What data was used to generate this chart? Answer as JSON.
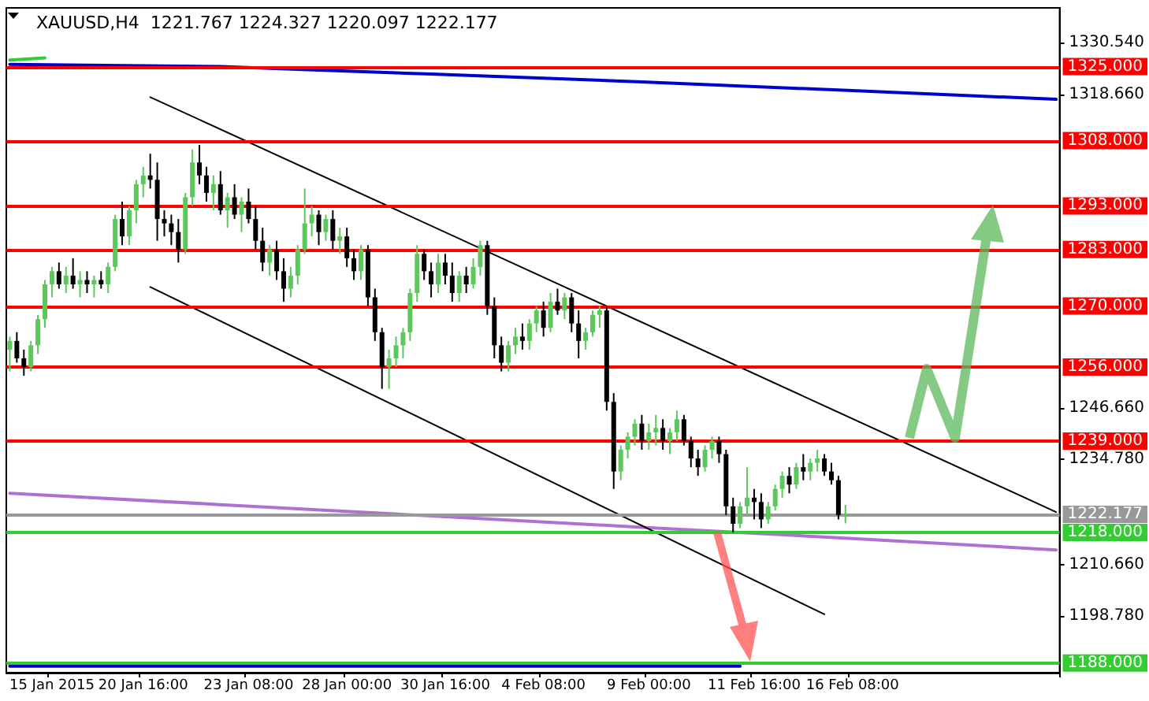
{
  "chart_data": {
    "type": "candlestick",
    "title": "XAUUSD,H4  1221.767 1224.327 1220.097 1222.177",
    "categories": [
      null,
      null,
      null,
      null,
      null,
      null,
      "15 Jan 2015",
      null,
      null,
      null,
      null,
      null,
      null,
      null,
      null,
      null,
      null,
      null,
      null,
      "20 Jan 16:00",
      null,
      null,
      null,
      null,
      null,
      null,
      null,
      null,
      null,
      null,
      null,
      null,
      null,
      null,
      "23 Jan 08:00",
      null,
      null,
      null,
      null,
      null,
      null,
      null,
      null,
      null,
      null,
      null,
      null,
      null,
      "28 Jan 00:00",
      null,
      null,
      null,
      null,
      null,
      null,
      null,
      null,
      null,
      null,
      null,
      null,
      null,
      "30 Jan 16:00",
      null,
      null,
      null,
      null,
      null,
      null,
      null,
      null,
      null,
      null,
      null,
      null,
      null,
      "4 Feb 08:00",
      null,
      null,
      null,
      null,
      null,
      null,
      null,
      null,
      null,
      null,
      null,
      null,
      null,
      null,
      "9 Feb 00:00",
      null,
      null,
      null,
      null,
      null,
      null,
      null,
      null,
      null,
      null,
      null,
      null,
      null,
      null,
      "11 Feb 16:00",
      null,
      null,
      null,
      null,
      null,
      null,
      null,
      null,
      null,
      null,
      null,
      null,
      null,
      "16 Feb 08:00",
      null,
      null,
      null,
      null,
      null,
      null,
      null,
      null,
      null,
      null,
      null,
      null,
      null,
      null,
      null,
      null,
      null,
      null,
      null,
      null,
      null,
      null,
      null,
      null,
      null,
      null,
      null,
      null,
      null
    ],
    "ohlc": [
      [
        1260,
        1263,
        1255,
        1262
      ],
      [
        1262,
        1264,
        1257,
        1258
      ],
      [
        1258,
        1260,
        1254,
        1256
      ],
      [
        1256,
        1262,
        1255,
        1261
      ],
      [
        1261,
        1268,
        1259,
        1267
      ],
      [
        1267,
        1276,
        1265,
        1275
      ],
      [
        1275,
        1279,
        1272,
        1278
      ],
      [
        1278,
        1280,
        1274,
        1275
      ],
      [
        1275,
        1279,
        1273,
        1277
      ],
      [
        1277,
        1281,
        1274,
        1275
      ],
      [
        1275,
        1278,
        1272,
        1276
      ],
      [
        1276,
        1278,
        1273,
        1275
      ],
      [
        1275,
        1277,
        1272,
        1276
      ],
      [
        1276,
        1278,
        1274,
        1275
      ],
      [
        1275,
        1280,
        1273,
        1279
      ],
      [
        1279,
        1291,
        1278,
        1290
      ],
      [
        1290,
        1294,
        1284,
        1286
      ],
      [
        1286,
        1293,
        1284,
        1292
      ],
      [
        1292,
        1299,
        1289,
        1298
      ],
      [
        1298,
        1302,
        1295,
        1300
      ],
      [
        1300,
        1305,
        1297,
        1299
      ],
      [
        1299,
        1303,
        1285,
        1290
      ],
      [
        1290,
        1292,
        1286,
        1289
      ],
      [
        1289,
        1291,
        1284,
        1287
      ],
      [
        1287,
        1290,
        1280,
        1283
      ],
      [
        1283,
        1296,
        1282,
        1295
      ],
      [
        1295,
        1306,
        1293,
        1303
      ],
      [
        1303,
        1307,
        1298,
        1300
      ],
      [
        1300,
        1302,
        1294,
        1296
      ],
      [
        1296,
        1300,
        1292,
        1298
      ],
      [
        1298,
        1301,
        1291,
        1292
      ],
      [
        1292,
        1296,
        1288,
        1295
      ],
      [
        1295,
        1298,
        1290,
        1291
      ],
      [
        1291,
        1295,
        1287,
        1294
      ],
      [
        1294,
        1297,
        1289,
        1290
      ],
      [
        1290,
        1293,
        1283,
        1285
      ],
      [
        1285,
        1288,
        1278,
        1280
      ],
      [
        1280,
        1284,
        1277,
        1283
      ],
      [
        1283,
        1285,
        1276,
        1278
      ],
      [
        1278,
        1281,
        1271,
        1274
      ],
      [
        1274,
        1279,
        1272,
        1277
      ],
      [
        1277,
        1284,
        1275,
        1283
      ],
      [
        1283,
        1297,
        1282,
        1289
      ],
      [
        1289,
        1293,
        1286,
        1291
      ],
      [
        1291,
        1292,
        1284,
        1287
      ],
      [
        1287,
        1291,
        1285,
        1290
      ],
      [
        1290,
        1292,
        1283,
        1285
      ],
      [
        1285,
        1288,
        1282,
        1286
      ],
      [
        1286,
        1288,
        1279,
        1281
      ],
      [
        1281,
        1283,
        1276,
        1278
      ],
      [
        1278,
        1284,
        1276,
        1283
      ],
      [
        1283,
        1284,
        1270,
        1272
      ],
      [
        1272,
        1274,
        1262,
        1264
      ],
      [
        1264,
        1265,
        1251,
        1256
      ],
      [
        1256,
        1260,
        1251,
        1258
      ],
      [
        1258,
        1263,
        1256,
        1261
      ],
      [
        1261,
        1265,
        1258,
        1264
      ],
      [
        1264,
        1274,
        1262,
        1273
      ],
      [
        1273,
        1284,
        1271,
        1282
      ],
      [
        1282,
        1283,
        1276,
        1278
      ],
      [
        1278,
        1280,
        1272,
        1275
      ],
      [
        1275,
        1282,
        1273,
        1280
      ],
      [
        1280,
        1282,
        1275,
        1277
      ],
      [
        1277,
        1280,
        1271,
        1273
      ],
      [
        1273,
        1278,
        1271,
        1277
      ],
      [
        1277,
        1279,
        1273,
        1275
      ],
      [
        1275,
        1281,
        1274,
        1279
      ],
      [
        1279,
        1285,
        1277,
        1284
      ],
      [
        1284,
        1285,
        1268,
        1270
      ],
      [
        1270,
        1272,
        1258,
        1261
      ],
      [
        1261,
        1263,
        1255,
        1257
      ],
      [
        1257,
        1262,
        1255,
        1261
      ],
      [
        1261,
        1265,
        1259,
        1263
      ],
      [
        1263,
        1266,
        1260,
        1262
      ],
      [
        1262,
        1267,
        1260,
        1266
      ],
      [
        1266,
        1270,
        1264,
        1269
      ],
      [
        1269,
        1271,
        1263,
        1265
      ],
      [
        1265,
        1273,
        1264,
        1271
      ],
      [
        1271,
        1274,
        1268,
        1269
      ],
      [
        1269,
        1273,
        1267,
        1272
      ],
      [
        1272,
        1273,
        1264,
        1266
      ],
      [
        1266,
        1269,
        1258,
        1262
      ],
      [
        1262,
        1265,
        1260,
        1264
      ],
      [
        1264,
        1269,
        1263,
        1268
      ],
      [
        1268,
        1270,
        1265,
        1269
      ],
      [
        1269,
        1270,
        1246,
        1248
      ],
      [
        1248,
        1250,
        1228,
        1232
      ],
      [
        1232,
        1238,
        1230,
        1237
      ],
      [
        1237,
        1241,
        1235,
        1240
      ],
      [
        1240,
        1244,
        1238,
        1243
      ],
      [
        1243,
        1245,
        1237,
        1239
      ],
      [
        1239,
        1243,
        1237,
        1241
      ],
      [
        1241,
        1245,
        1238,
        1242
      ],
      [
        1242,
        1244,
        1237,
        1239
      ],
      [
        1239,
        1242,
        1236,
        1241
      ],
      [
        1241,
        1246,
        1239,
        1244
      ],
      [
        1244,
        1245,
        1238,
        1239
      ],
      [
        1239,
        1240,
        1233,
        1235
      ],
      [
        1235,
        1237,
        1231,
        1233
      ],
      [
        1233,
        1238,
        1232,
        1237
      ],
      [
        1237,
        1240,
        1235,
        1239
      ],
      [
        1239,
        1240,
        1234,
        1236
      ],
      [
        1236,
        1237,
        1222,
        1224
      ],
      [
        1224,
        1226,
        1218,
        1220
      ],
      [
        1220,
        1225,
        1219,
        1224
      ],
      [
        1224,
        1233,
        1222,
        1226
      ],
      [
        1226,
        1228,
        1221,
        1225
      ],
      [
        1225,
        1227,
        1219,
        1221
      ],
      [
        1221,
        1225,
        1220,
        1224
      ],
      [
        1224,
        1229,
        1223,
        1228
      ],
      [
        1228,
        1232,
        1226,
        1231
      ],
      [
        1231,
        1233,
        1227,
        1229
      ],
      [
        1229,
        1234,
        1228,
        1233
      ],
      [
        1233,
        1236,
        1230,
        1232
      ],
      [
        1232,
        1235,
        1230,
        1234
      ],
      [
        1234,
        1237,
        1232,
        1235
      ],
      [
        1235,
        1236,
        1231,
        1232
      ],
      [
        1232,
        1234,
        1229,
        1230
      ],
      [
        1230,
        1231,
        1221,
        1222
      ],
      [
        1221.767,
        1224.327,
        1220.097,
        1222.177
      ],
      null,
      null,
      null,
      null,
      null,
      null,
      null,
      null,
      null,
      null,
      null,
      null,
      null,
      null,
      null,
      null,
      null,
      null,
      null,
      null,
      null,
      null,
      null,
      null,
      null,
      null,
      null,
      null,
      null,
      null
    ],
    "series": [
      {
        "type": "line",
        "color": "#0000cc",
        "values": [
          1325.5,
          null,
          null,
          null,
          null,
          null,
          null,
          null,
          null,
          null,
          null,
          null,
          null,
          null,
          null,
          null,
          null,
          null,
          null,
          null,
          null,
          null,
          null,
          null,
          null,
          null,
          null,
          null,
          null,
          null,
          1325,
          null,
          null,
          null,
          null,
          null,
          null,
          null,
          null,
          null,
          null,
          null,
          null,
          null,
          null,
          null,
          null,
          null,
          null,
          null,
          null,
          null,
          null,
          null,
          null,
          null,
          null,
          null,
          null,
          null,
          1323.3,
          null,
          null,
          null,
          null,
          null,
          null,
          null,
          null,
          null,
          null,
          null,
          null,
          null,
          null,
          null,
          null,
          null,
          null,
          null,
          null,
          null,
          null,
          null,
          null,
          null,
          null,
          null,
          null,
          null,
          1321.5,
          null,
          null,
          null,
          null,
          null,
          null,
          null,
          null,
          null,
          null,
          null,
          null,
          null,
          null,
          null,
          null,
          null,
          null,
          null,
          null,
          null,
          null,
          null,
          null,
          null,
          null,
          null,
          null,
          null,
          1319.5,
          null,
          null,
          null,
          null,
          null,
          null,
          null,
          null,
          null,
          null,
          null,
          null,
          null,
          null,
          null,
          null,
          null,
          null,
          null,
          null,
          null,
          null,
          null,
          null,
          null,
          null,
          null,
          null,
          1317.5
        ]
      },
      {
        "type": "line",
        "color": "#b070d0",
        "values": [
          1227,
          null,
          null,
          null,
          null,
          null,
          null,
          null,
          null,
          null,
          null,
          null,
          null,
          null,
          null,
          null,
          null,
          null,
          null,
          null,
          null,
          null,
          null,
          null,
          null,
          null,
          null,
          null,
          null,
          null,
          1224.4,
          null,
          null,
          null,
          null,
          null,
          null,
          null,
          null,
          null,
          null,
          null,
          null,
          null,
          null,
          null,
          null,
          null,
          null,
          null,
          null,
          null,
          null,
          null,
          null,
          null,
          null,
          null,
          null,
          null,
          1221.8,
          null,
          null,
          null,
          null,
          null,
          null,
          null,
          null,
          null,
          null,
          null,
          null,
          null,
          null,
          null,
          null,
          null,
          null,
          null,
          null,
          null,
          null,
          null,
          null,
          null,
          null,
          null,
          null,
          null,
          1219.2,
          null,
          null,
          null,
          null,
          null,
          null,
          null,
          null,
          null,
          null,
          null,
          null,
          null,
          null,
          null,
          null,
          null,
          null,
          null,
          null,
          null,
          null,
          null,
          null,
          null,
          null,
          null,
          null,
          null,
          1216.6,
          null,
          null,
          null,
          null,
          null,
          null,
          null,
          null,
          null,
          null,
          null,
          null,
          null,
          null,
          null,
          null,
          null,
          null,
          null,
          null,
          null,
          null,
          null,
          null,
          null,
          null,
          null,
          null,
          1214
        ]
      },
      {
        "type": "line",
        "color": "#000000",
        "values": [
          null,
          null,
          null,
          null,
          null,
          null,
          null,
          null,
          null,
          null,
          null,
          null,
          null,
          null,
          null,
          null,
          null,
          null,
          null,
          null,
          1318,
          null,
          null,
          null,
          null,
          null,
          null,
          null,
          null,
          null,
          null,
          null,
          null,
          null,
          null,
          null,
          null,
          null,
          null,
          null,
          null,
          null,
          null,
          null,
          null,
          null,
          null,
          null,
          null,
          null,
          null,
          null,
          null,
          null,
          null,
          null,
          null,
          null,
          null,
          null,
          null,
          null,
          null,
          null,
          null,
          null,
          null,
          null,
          null,
          null,
          null,
          null,
          null,
          null,
          null,
          null,
          null,
          null,
          null,
          null,
          null,
          null,
          null,
          null,
          null,
          null,
          null,
          null,
          null,
          null,
          null,
          null,
          null,
          null,
          null,
          null,
          null,
          null,
          null,
          null,
          null,
          null,
          null,
          null,
          null,
          null,
          null,
          null,
          null,
          null,
          null,
          null,
          null,
          null,
          null,
          null,
          null,
          null,
          null,
          null,
          null,
          null,
          null,
          null,
          null,
          null,
          null,
          null,
          null,
          null,
          null,
          null,
          null,
          null,
          null,
          null,
          null,
          null,
          null,
          null,
          null,
          null,
          null,
          null,
          null,
          null,
          null,
          null,
          null,
          1222.7
        ]
      },
      {
        "type": "line",
        "color": "#000000",
        "values": [
          null,
          null,
          null,
          null,
          null,
          null,
          null,
          null,
          null,
          null,
          null,
          null,
          null,
          null,
          null,
          null,
          null,
          null,
          null,
          null,
          1274.4,
          null,
          null,
          null,
          null,
          null,
          null,
          null,
          null,
          null,
          null,
          null,
          null,
          null,
          null,
          null,
          null,
          null,
          null,
          null,
          null,
          null,
          null,
          null,
          null,
          null,
          null,
          null,
          null,
          null,
          null,
          null,
          null,
          null,
          null,
          null,
          null,
          null,
          null,
          null,
          null,
          null,
          null,
          null,
          null,
          null,
          null,
          null,
          null,
          null,
          null,
          null,
          null,
          null,
          null,
          null,
          null,
          null,
          null,
          null,
          null,
          null,
          null,
          null,
          null,
          null,
          null,
          null,
          null,
          null,
          null,
          null,
          null,
          null,
          null,
          null,
          null,
          null,
          null,
          null,
          null,
          null,
          null,
          null,
          null,
          null,
          null,
          null,
          null,
          null,
          null,
          null,
          null,
          null,
          null,
          null,
          1199.2,
          null,
          null,
          null,
          null,
          null,
          null,
          null,
          null,
          null,
          null,
          null,
          null,
          null,
          null,
          null,
          null,
          null,
          null,
          null,
          null,
          null,
          null,
          null,
          null,
          null,
          null,
          null,
          null,
          null,
          null,
          null,
          null,
          null
        ]
      },
      {
        "type": "line",
        "color": "#33cc33",
        "values": [
          1326.5,
          null,
          null,
          null,
          null,
          1327,
          null,
          null,
          null,
          null,
          null,
          null,
          null,
          null,
          null,
          null,
          null,
          null,
          null,
          null,
          null,
          null,
          null,
          null,
          null,
          null,
          null,
          null,
          null,
          null,
          null,
          null,
          null,
          null,
          null,
          null,
          null,
          null,
          null,
          null,
          null,
          null,
          null,
          null,
          null,
          null,
          null,
          null,
          null,
          null,
          null,
          null,
          null,
          null,
          null,
          null,
          null,
          null,
          null,
          null,
          null,
          null,
          null,
          null,
          null,
          null,
          null,
          null,
          null,
          null,
          null,
          null,
          null,
          null,
          null,
          null,
          null,
          null,
          null,
          null,
          null,
          null,
          null,
          null,
          null,
          null,
          null,
          null,
          null,
          null,
          null,
          null,
          null,
          null,
          null,
          null,
          null,
          null,
          null,
          null,
          null,
          null,
          null,
          null,
          null,
          null,
          null,
          null,
          null,
          null,
          null,
          null,
          null,
          null,
          null,
          null,
          null,
          null,
          null,
          null,
          null,
          null,
          null,
          null,
          null,
          null,
          null,
          null,
          null,
          null,
          null,
          null,
          null,
          null,
          null,
          null,
          null,
          null,
          null,
          null,
          null,
          null,
          null,
          null,
          null,
          null,
          null,
          null,
          null,
          null
        ]
      },
      {
        "type": "line",
        "color": "#0000cc",
        "values": [
          1187.3,
          null,
          null,
          null,
          null,
          null,
          null,
          null,
          null,
          null,
          null,
          null,
          null,
          null,
          null,
          null,
          null,
          null,
          null,
          null,
          null,
          null,
          null,
          null,
          null,
          null,
          null,
          null,
          null,
          null,
          null,
          null,
          null,
          null,
          null,
          null,
          null,
          null,
          null,
          null,
          null,
          null,
          null,
          null,
          null,
          null,
          null,
          null,
          null,
          null,
          null,
          null,
          null,
          null,
          null,
          null,
          null,
          null,
          null,
          null,
          null,
          null,
          null,
          null,
          null,
          null,
          null,
          null,
          null,
          null,
          null,
          null,
          null,
          null,
          null,
          null,
          null,
          null,
          null,
          null,
          null,
          null,
          null,
          null,
          null,
          null,
          null,
          null,
          null,
          null,
          null,
          null,
          null,
          null,
          null,
          null,
          null,
          null,
          null,
          null,
          null,
          null,
          null,
          null,
          1187.3,
          null,
          null,
          null,
          null,
          null,
          null,
          null,
          null,
          null,
          null,
          null,
          null,
          null,
          null,
          null,
          null,
          null,
          null,
          null,
          null,
          null,
          null,
          null,
          null,
          null,
          null,
          null,
          null,
          null,
          null,
          null,
          null,
          null,
          null,
          null,
          null,
          null,
          null,
          null,
          null,
          null,
          null,
          null,
          null,
          null
        ]
      }
    ],
    "ref_lines": [
      {
        "axis": "y",
        "value": 1325,
        "label": "1325.000",
        "color": "#ff0000"
      },
      {
        "axis": "y",
        "value": 1308,
        "label": "1308.000",
        "color": "#ff0000"
      },
      {
        "axis": "y",
        "value": 1293,
        "label": "1293.000",
        "color": "#ff0000"
      },
      {
        "axis": "y",
        "value": 1283,
        "label": "1283.000",
        "color": "#ff0000"
      },
      {
        "axis": "y",
        "value": 1270,
        "label": "1270.000",
        "color": "#ff0000"
      },
      {
        "axis": "y",
        "value": 1256,
        "label": "1256.000",
        "color": "#ff0000"
      },
      {
        "axis": "y",
        "value": 1239,
        "label": "1239.000",
        "color": "#ff0000"
      },
      {
        "axis": "y",
        "value": 1222.177,
        "label": "1222.177",
        "color": "#999999"
      },
      {
        "axis": "y",
        "value": 1218,
        "label": "1218.000",
        "color": "#33cc33"
      },
      {
        "axis": "y",
        "value": 1188,
        "label": "1188.000",
        "color": "#33cc33"
      }
    ],
    "ylim": [
      1185.8,
      1338.5
    ],
    "yticks": [
      {
        "value": 1330.54,
        "label": "1330.540"
      },
      {
        "value": 1318.66,
        "label": "1318.660"
      },
      {
        "value": 1246.66,
        "label": "1246.660"
      },
      {
        "value": 1234.78,
        "label": "1234.780"
      },
      {
        "value": 1210.66,
        "label": "1210.660"
      },
      {
        "value": 1198.78,
        "label": "1198.780"
      }
    ],
    "grid": false
  }
}
